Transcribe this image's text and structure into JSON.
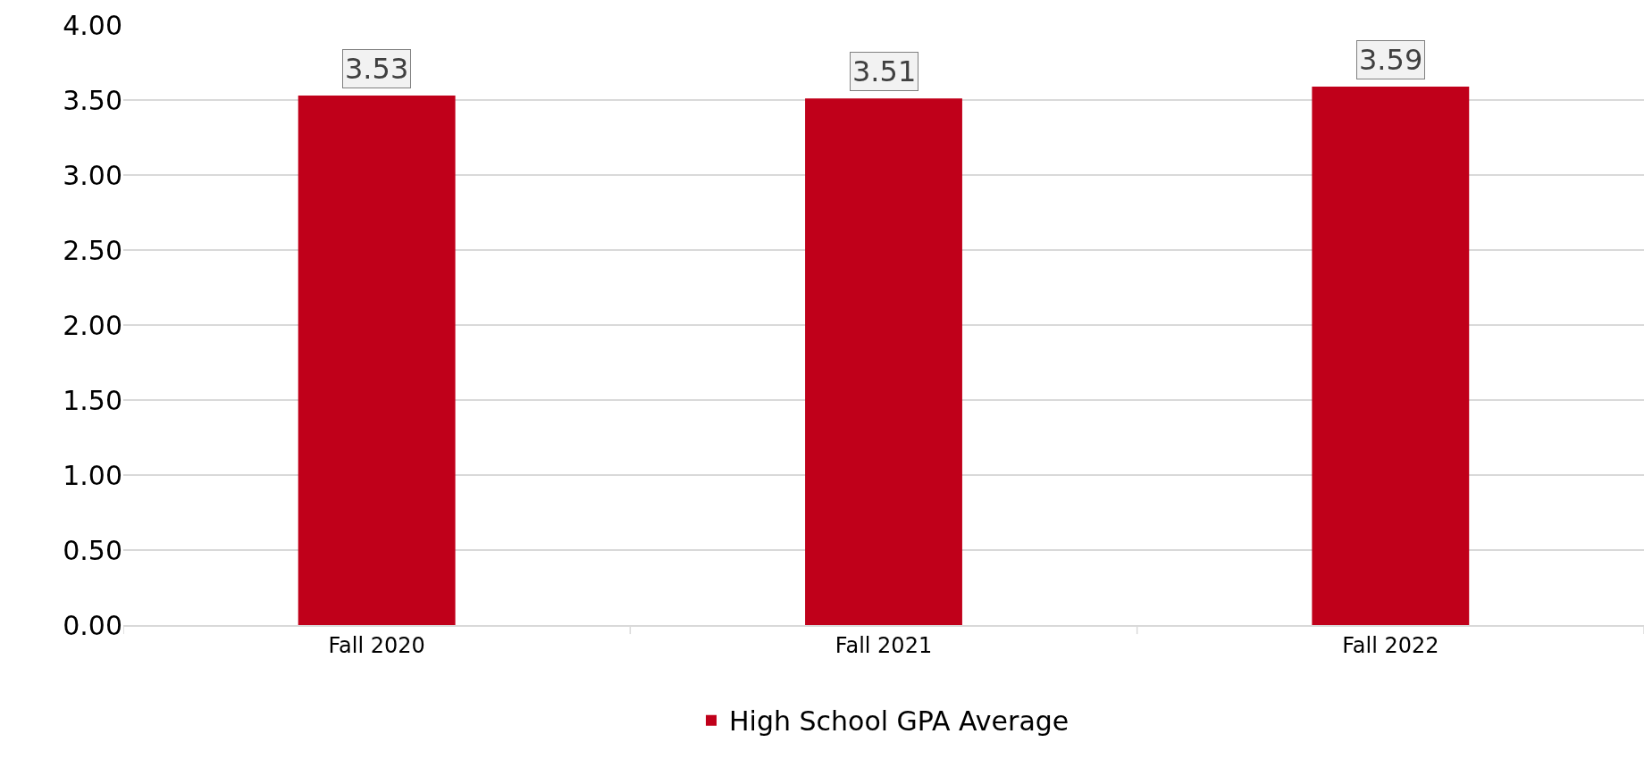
{
  "chart_data": {
    "type": "bar",
    "categories": [
      "Fall 2020",
      "Fall 2021",
      "Fall 2022"
    ],
    "series": [
      {
        "name": "High School GPA Average",
        "color": "#c0001a",
        "values": [
          3.53,
          3.51,
          3.59
        ]
      }
    ],
    "ylim": [
      0,
      4
    ],
    "yticks": [
      {
        "value": 0,
        "label": "0.00"
      },
      {
        "value": 0.5,
        "label": "0.50"
      },
      {
        "value": 1,
        "label": "1.00"
      },
      {
        "value": 1.5,
        "label": "1.50"
      },
      {
        "value": 2,
        "label": "2.00"
      },
      {
        "value": 2.5,
        "label": "2.50"
      },
      {
        "value": 3,
        "label": "3.00"
      },
      {
        "value": 3.5,
        "label": "3.50"
      },
      {
        "value": 4,
        "label": "4.00"
      }
    ],
    "grid": "y",
    "legend": "bottom",
    "data_labels": true
  }
}
